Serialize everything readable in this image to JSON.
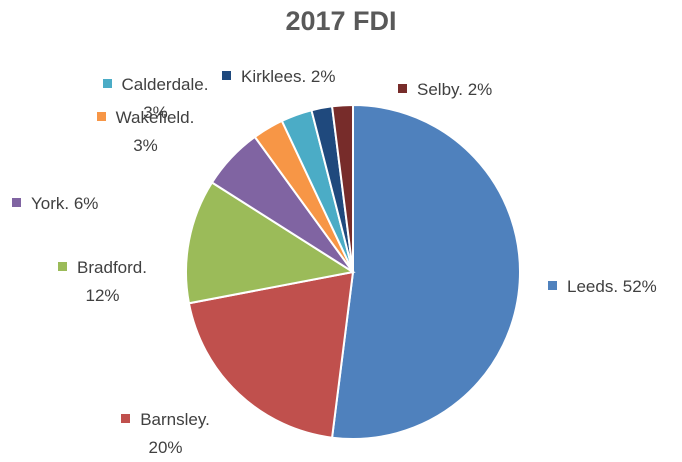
{
  "chart_data": {
    "type": "pie",
    "title": "2017 FDI",
    "values": [
      52,
      20,
      12,
      6,
      3,
      3,
      2,
      2
    ],
    "value_labels": [
      "Leeds. 52%",
      "Barnsley. 20%",
      "Bradford. 12%",
      "York. 6%",
      "Wakefield. 3%",
      "Calderdale. 3%",
      "Kirklees. 2%",
      "Selby. 2%"
    ],
    "colors": [
      "#4f81bd",
      "#c0504d",
      "#9bbb59",
      "#8064a2",
      "#f79646",
      "#4bacc6",
      "#1f497d",
      "#772c2a"
    ]
  }
}
